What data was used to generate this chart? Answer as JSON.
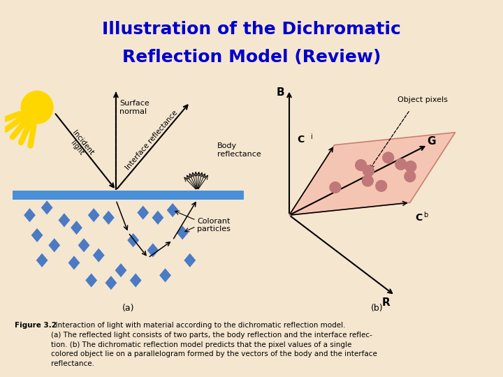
{
  "title_line1": "Illustration of the Dichromatic",
  "title_line2": "Reflection Model (Review)",
  "title_color": "#0000CC",
  "title_bg": "#E8C9A0",
  "bg_color": "#F5E6D0",
  "fig_caption_bold": "Figure 3.2",
  "fig_caption_rest": "  Interaction of light with material according to the dichromatic reflection model.\n(a) The reflected light consists of two parts, the body reflection and the interface reflec-\ntion. (b) The dichromatic reflection model predicts that the pixel values of a single\ncolored object lie on a parallelogram formed by the vectors of the body and the interface\nreflectance.",
  "panel_a_label": "(a)",
  "panel_b_label": "(b)",
  "surface_color": "#4A90D9",
  "particle_color": "#4A7BC4",
  "sun_color": "#FFD700",
  "sun_ray_color": "#FFD700",
  "label_surface_normal": "Surface\nnormal",
  "label_incident": "Incident\nlight",
  "label_interface_refl": "Interface reflectance",
  "label_body_refl": "Body\nreflectance",
  "label_colorant": "Colorant\nparticles",
  "label_B": "B",
  "label_G": "G",
  "label_R": "R",
  "label_Ci": "C",
  "label_Cb": "C",
  "label_object_pixels": "Object pixels",
  "parallelogram_color": "#F5C0B0",
  "parallelogram_edge": "#C07060",
  "dot_color": "#C07878"
}
